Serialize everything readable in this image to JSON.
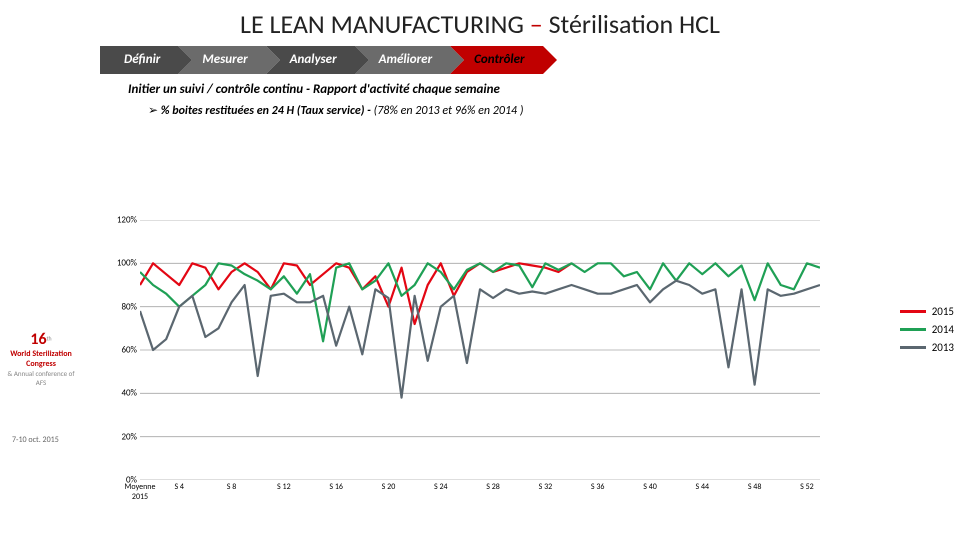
{
  "title": {
    "main": "LE LEAN MANUFACTURING",
    "dash": "–",
    "sub": "Stérilisation HCL",
    "fontsize": 26
  },
  "steps": [
    {
      "label": "Définir",
      "bg": "#4a4a4a",
      "fg": "#fff"
    },
    {
      "label": "Mesurer",
      "bg": "#6b6b6b",
      "fg": "#fff"
    },
    {
      "label": "Analyser",
      "bg": "#4a4a4a",
      "fg": "#fff"
    },
    {
      "label": "Améliorer",
      "bg": "#6b6b6b",
      "fg": "#fff"
    },
    {
      "label": "Contrôler",
      "bg": "#c00000",
      "fg": "#000"
    }
  ],
  "subtitle": "Initier un suivi / contrôle continu  - Rapport d'activité chaque semaine",
  "bullet": {
    "arrow": "➢",
    "bold": "% boites restituées en 24 H (Taux service) -",
    "rest": " (78% en 2013  et   96% en 2014 )"
  },
  "chart": {
    "type": "line",
    "ylim": [
      0,
      120
    ],
    "ytick_step": 20,
    "ylabels": [
      "0%",
      "20%",
      "40%",
      "60%",
      "80%",
      "100%",
      "120%"
    ],
    "xlabels": [
      "Moyenne\n2015",
      "S 4",
      "S 8",
      "S 12",
      "S 16",
      "S 20",
      "S 24",
      "S 28",
      "S 32",
      "S 36",
      "S 40",
      "S 44",
      "S 48",
      "S 52"
    ],
    "x_count": 53,
    "grid_color": "#a6a6a6",
    "background_color": "#ffffff",
    "line_width": 2.2,
    "series": [
      {
        "name": "2015",
        "color": "#e30613",
        "y": [
          90,
          100,
          95,
          90,
          100,
          98,
          88,
          96,
          100,
          96,
          88,
          100,
          99,
          90,
          95,
          100,
          98,
          88,
          94,
          80,
          98,
          72,
          90,
          100,
          85,
          96,
          100,
          96,
          98,
          100,
          99,
          98,
          96,
          100
        ]
      },
      {
        "name": "2014",
        "color": "#1fa055",
        "y": [
          96,
          90,
          86,
          80,
          85,
          90,
          100,
          99,
          95,
          92,
          88,
          94,
          86,
          95,
          64,
          98,
          100,
          88,
          92,
          100,
          85,
          90,
          100,
          96,
          88,
          97,
          100,
          96,
          100,
          99,
          89,
          100,
          97,
          100,
          96,
          100,
          100,
          94,
          96,
          88,
          100,
          92,
          100,
          95,
          100,
          94,
          99,
          83,
          100,
          90,
          88,
          100,
          98
        ]
      },
      {
        "name": "2013",
        "color": "#5b6770",
        "y": [
          78,
          60,
          65,
          80,
          85,
          66,
          70,
          82,
          90,
          48,
          85,
          86,
          82,
          82,
          85,
          62,
          80,
          58,
          88,
          84,
          38,
          85,
          55,
          80,
          85,
          54,
          88,
          84,
          88,
          86,
          87,
          86,
          88,
          90,
          88,
          86,
          86,
          88,
          90,
          82,
          88,
          92,
          90,
          86,
          88,
          52,
          88,
          44,
          88,
          85,
          86,
          88,
          90
        ]
      }
    ]
  },
  "legend": [
    {
      "label": "2015",
      "color": "#e30613"
    },
    {
      "label": "2014",
      "color": "#1fa055"
    },
    {
      "label": "2013",
      "color": "#5b6770"
    }
  ],
  "logo": {
    "number": "16",
    "th": "th",
    "title": "World Sterilization Congress",
    "sub": "& Annual conference of AFS"
  },
  "date": "7-10 oct. 2015"
}
